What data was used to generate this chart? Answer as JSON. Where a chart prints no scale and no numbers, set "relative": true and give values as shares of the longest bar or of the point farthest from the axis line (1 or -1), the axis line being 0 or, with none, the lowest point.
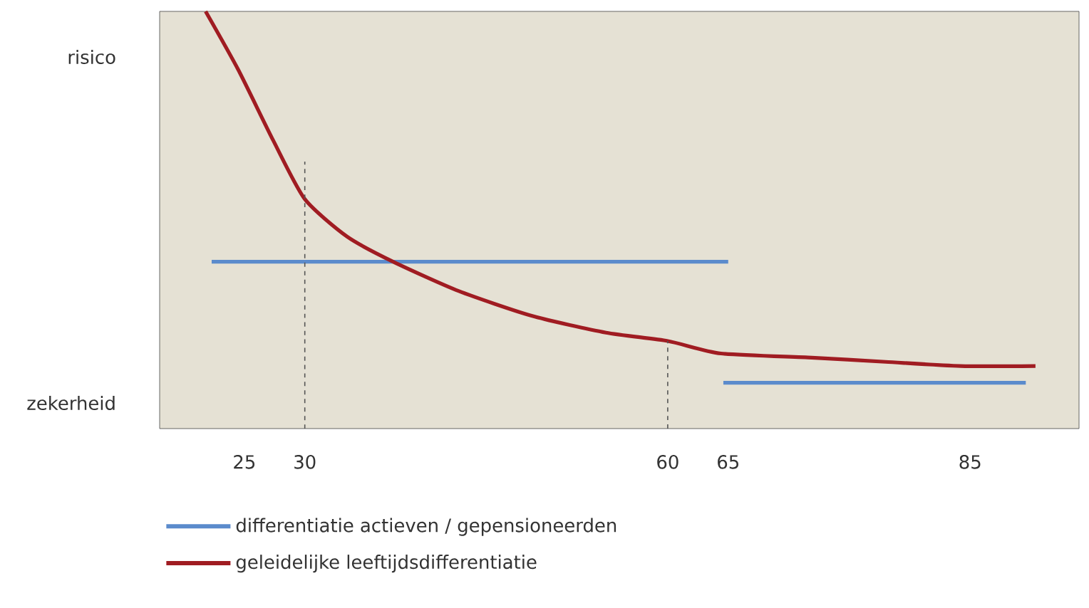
{
  "chart_data": {
    "type": "line",
    "relative": true,
    "tick_labels": "x",
    "annotations": [
      "risico",
      "zekerheid"
    ],
    "xlim": [
      18,
      94
    ],
    "xticks": [
      25,
      30,
      60,
      65,
      85
    ],
    "legend": "bottom left",
    "series": [
      {
        "name": "differentiatie actieven / gepensioneerden",
        "color": "#5b8bcc",
        "x": [
          22.3,
          65
        ],
        "values": [
          0.4,
          0.4
        ]
      },
      {
        "color": "#5b8bcc",
        "x": [
          64.6,
          89.6
        ],
        "values": [
          0.11,
          0.11
        ]
      },
      {
        "name": "geleidelijke leeftijdsdifferentiatie",
        "color": "#a01c22",
        "x": [
          21.8,
          24.5,
          27.4,
          30,
          33.5,
          37.3,
          42.7,
          48.8,
          54.9,
          60,
          64.4,
          71.9,
          78,
          84.2,
          90.4
        ],
        "values": [
          1,
          0.86,
          0.69,
          0.55,
          0.46,
          0.4,
          0.33,
          0.27,
          0.23,
          0.21,
          0.18,
          0.17,
          0.16,
          0.15,
          0.15
        ]
      },
      {
        "color": "#555555",
        "line_style": "dashed",
        "x": [
          30,
          30
        ],
        "values": [
          0,
          0.64
        ]
      },
      {
        "color": "#555555",
        "line_style": "dashed",
        "x": [
          60,
          60
        ],
        "values": [
          0,
          0.21
        ]
      }
    ]
  }
}
